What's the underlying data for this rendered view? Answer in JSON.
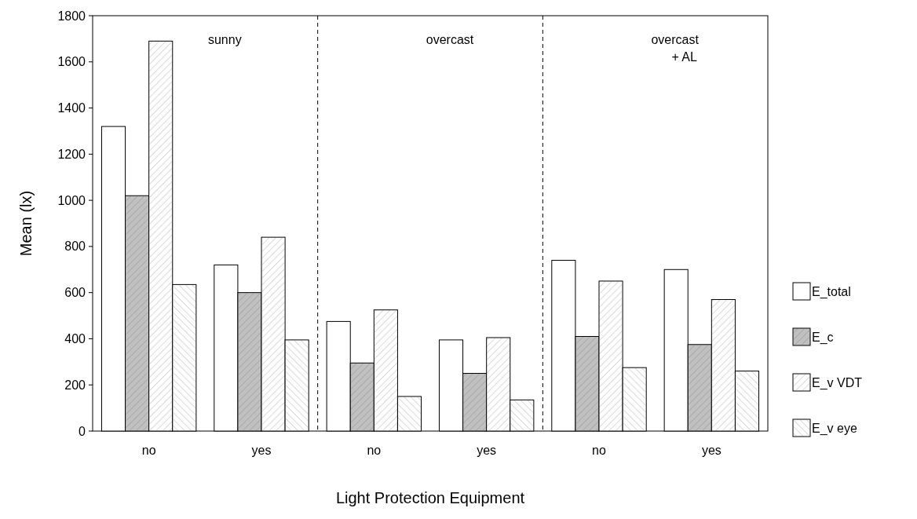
{
  "chart_data": {
    "type": "bar",
    "xlabel": "Light Protection Equipment",
    "ylabel": "Mean (lx)",
    "categories": [
      "no",
      "yes",
      "no",
      "yes",
      "no",
      "yes"
    ],
    "series": [
      {
        "name": "E_total",
        "color": "#ffffff",
        "values": [
          1320,
          720,
          475,
          395,
          740,
          700
        ]
      },
      {
        "name": "E_c",
        "color": "#c0c0c0",
        "values": [
          1020,
          600,
          295,
          250,
          410,
          375
        ]
      },
      {
        "name": "E_v VDT",
        "color": "#ffffff",
        "values": [
          1690,
          840,
          525,
          405,
          650,
          570
        ]
      },
      {
        "name": "E_v eye",
        "color": "#ffffff",
        "values": [
          635,
          395,
          150,
          135,
          275,
          260
        ]
      }
    ],
    "ylim": [
      0,
      1800
    ],
    "yticks": [
      0,
      200,
      400,
      600,
      800,
      1000,
      1200,
      1400,
      1600,
      1800
    ],
    "annotations": [
      "sunny",
      "overcast",
      "overcast\n+ AL"
    ],
    "grid": false,
    "legend": "right"
  }
}
